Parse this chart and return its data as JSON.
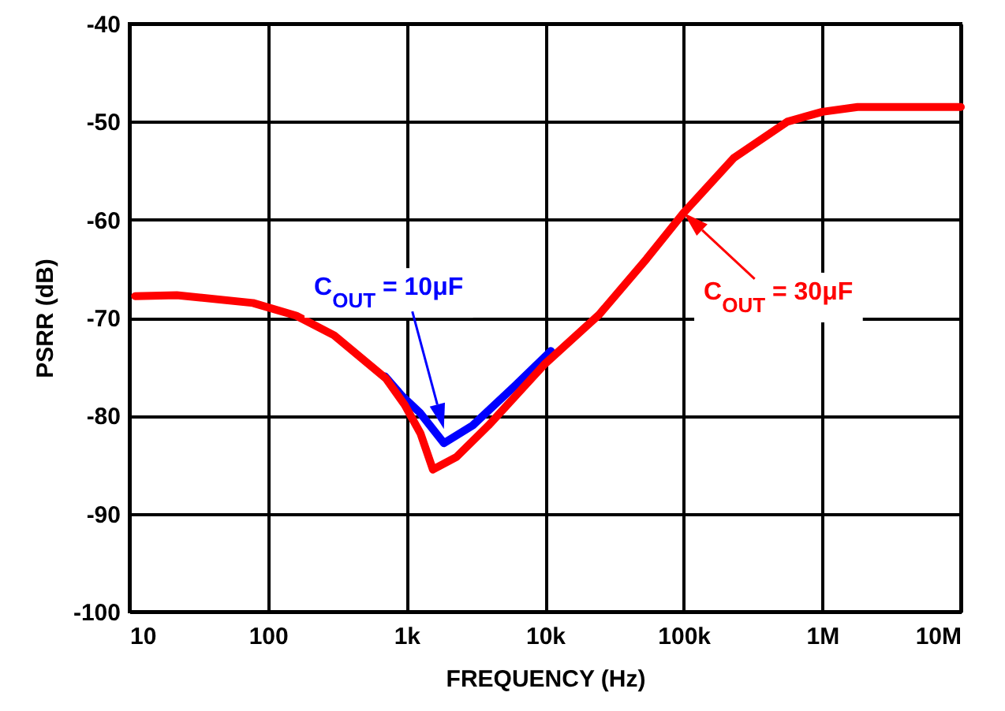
{
  "chart_data": {
    "type": "line",
    "xlabel": "FREQUENCY (Hz)",
    "ylabel": "PSRR (dB)",
    "log": "x",
    "grid": true,
    "line_style": "solid",
    "marker": "none",
    "xlim": [
      10,
      10000000
    ],
    "xticks": [
      10,
      100,
      {
        "value": 1000,
        "label": "1k"
      },
      {
        "value": 10000,
        "label": "10k"
      },
      {
        "value": 100000,
        "label": "100k"
      },
      {
        "value": 1000000,
        "label": "1M"
      },
      {
        "value": 10000000,
        "label": "10M"
      }
    ],
    "ylim": [
      -100,
      -40
    ],
    "yticks": [
      -100,
      -90,
      -80,
      -70,
      -60,
      -50,
      -40
    ],
    "series": [
      {
        "color": "#0000ff",
        "x": [
          700,
          930,
          1250,
          1860,
          3000,
          6000,
          11000
        ],
        "values": [
          -76,
          -78,
          -79.7,
          -82.8,
          -81,
          -77,
          -73.4
        ]
      },
      {
        "color": "#ff0000",
        "x": [
          11,
          22,
          78,
          160,
          300,
          710,
          970,
          1260,
          1550,
          2300,
          3900,
          10000,
          24500,
          54000,
          100000,
          230000,
          560000,
          1000000,
          1800000,
          10000000
        ],
        "values": [
          -67.8,
          -67.7,
          -68.5,
          -69.8,
          -71.8,
          -76.2,
          -78.9,
          -81.8,
          -85.5,
          -84.2,
          -81,
          -74.7,
          -69.7,
          -64,
          -59.3,
          -53.7,
          -50,
          -49,
          -48.5,
          -48.5
        ]
      }
    ],
    "annotations": [
      "C$_{OUT}$ = 10μF",
      {
        "text": "C$_{OUT}$ = 30μF",
        "x": 100000,
        "y": -59.3
      }
    ]
  }
}
